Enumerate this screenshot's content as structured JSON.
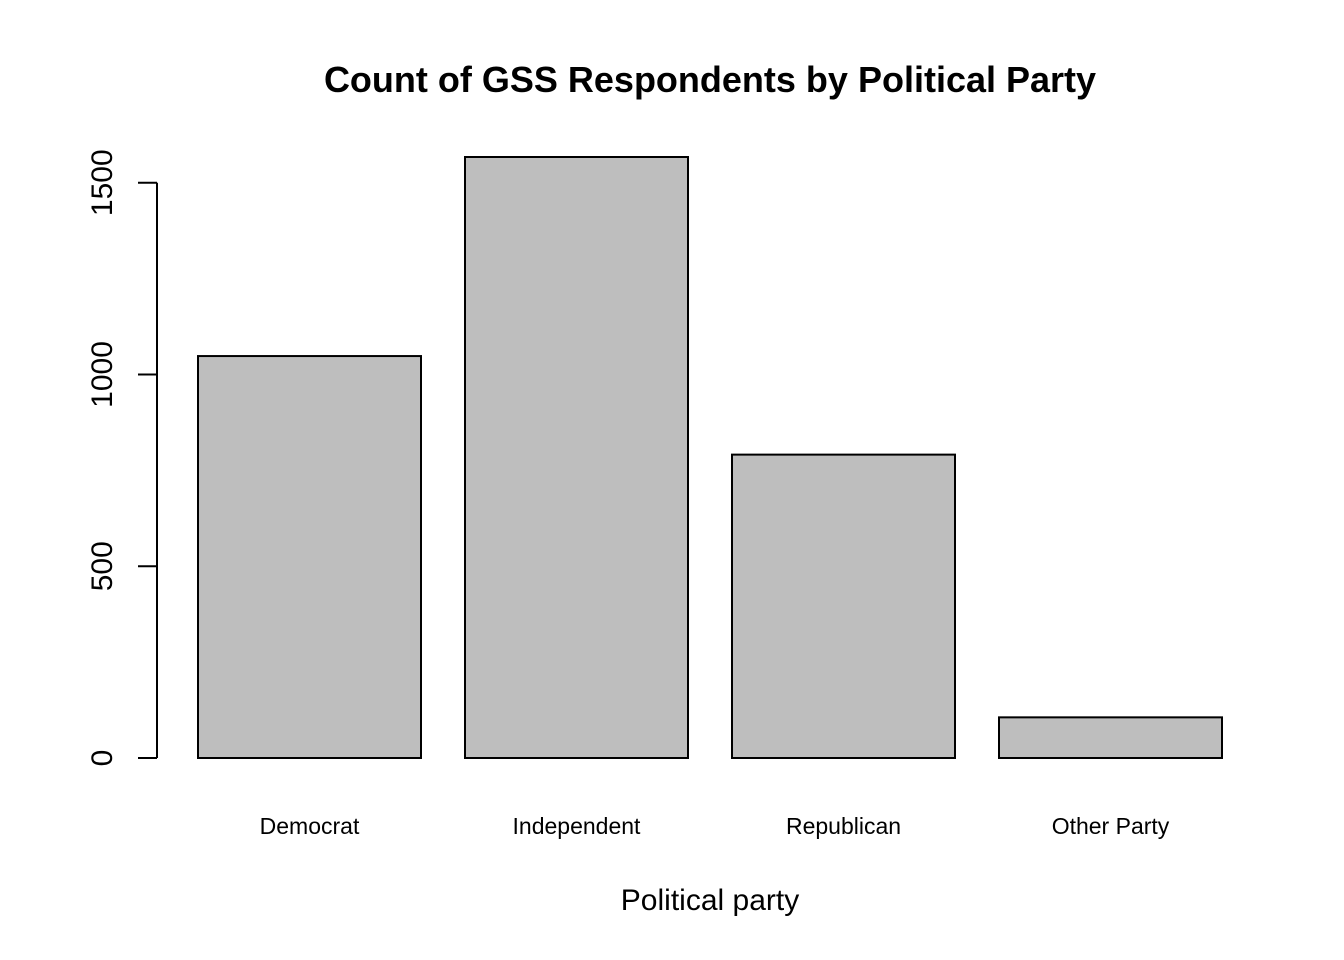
{
  "chart_data": {
    "type": "bar",
    "title": "Count of GSS Respondents by Political Party",
    "xlabel": "Political party",
    "ylabel": "",
    "categories": [
      "Democrat",
      "Independent",
      "Republican",
      "Other Party"
    ],
    "values": [
      1048,
      1567,
      791,
      106
    ],
    "ylim": [
      0,
      1567
    ],
    "yticks": [
      0,
      500,
      1000,
      1500
    ],
    "grid": false,
    "bar_color": "#bebebe",
    "bar_border_color": "#000000"
  }
}
